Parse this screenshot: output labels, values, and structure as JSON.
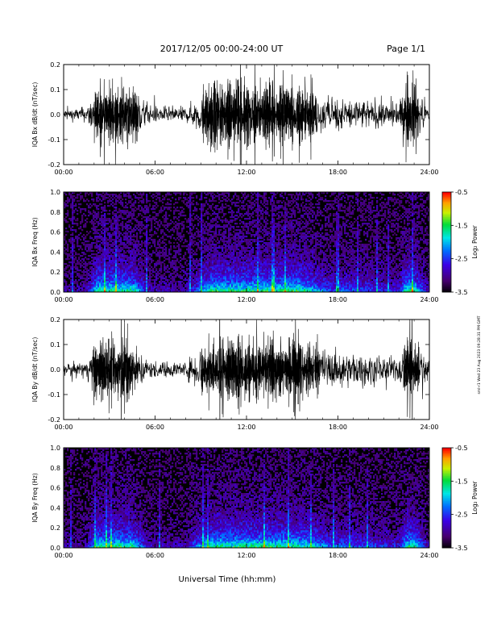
{
  "header": {
    "title": "2017/12/05  00:00-24:00 UT",
    "page": "Page 1/1"
  },
  "x_axis_title": "Universal Time (hh:mm)",
  "side_note": "sml-r1 Wed 23 Aug 2023 09:28:31 PM GMT",
  "chart_data": [
    {
      "type": "line",
      "panel": "Bx dB/dt",
      "ylabel": "IQA Bx dB/dt (nT/sec)",
      "xlim": [
        0,
        24
      ],
      "ylim": [
        -0.2,
        0.2
      ],
      "xticks": [
        "00:00",
        "06:00",
        "12:00",
        "18:00",
        "24:00"
      ],
      "yticks": [
        "-0.2",
        "-0.1",
        "0.0",
        "0.1",
        "0.2"
      ],
      "activity_envelope": {
        "x_hours": [
          0,
          1.5,
          2.2,
          4.5,
          5.6,
          8.0,
          8.6,
          9.7,
          11.5,
          13.0,
          14.5,
          15.6,
          17.6,
          18.5,
          20.0,
          22.0,
          22.5,
          23.0,
          24.0
        ],
        "amplitude": [
          0.04,
          0.05,
          0.2,
          0.2,
          0.06,
          0.05,
          0.1,
          0.2,
          0.2,
          0.2,
          0.2,
          0.2,
          0.1,
          0.12,
          0.1,
          0.08,
          0.2,
          0.2,
          0.04
        ]
      }
    },
    {
      "type": "heatmap",
      "panel": "Bx Freq",
      "ylabel": "IQA Bx Freq (Hz)",
      "xlim": [
        0,
        24
      ],
      "ylim": [
        0.0,
        1.0
      ],
      "xticks": [
        "00:00",
        "06:00",
        "12:00",
        "18:00",
        "24:00"
      ],
      "yticks": [
        "0.0",
        "0.2",
        "0.4",
        "0.6",
        "0.8",
        "1.0"
      ],
      "colorbar": {
        "label": "Log₂ Power",
        "range": [
          -3.5,
          -0.5
        ],
        "ticks": [
          "-0.5",
          "-1.5",
          "-2.5",
          "-3.5"
        ]
      }
    },
    {
      "type": "line",
      "panel": "By dB/dt",
      "ylabel": "IQA By dB/dt (nT/sec)",
      "xlim": [
        0,
        24
      ],
      "ylim": [
        -0.2,
        0.2
      ],
      "xticks": [
        "00:00",
        "06:00",
        "12:00",
        "18:00",
        "24:00"
      ],
      "yticks": [
        "-0.2",
        "-0.1",
        "0.0",
        "0.1",
        "0.2"
      ],
      "activity_envelope": {
        "x_hours": [
          0,
          1.5,
          2.2,
          4.5,
          5.6,
          8.0,
          8.6,
          9.7,
          11.5,
          13.0,
          14.5,
          15.6,
          17.6,
          18.5,
          20.0,
          22.0,
          22.5,
          23.0,
          24.0
        ],
        "amplitude": [
          0.04,
          0.05,
          0.2,
          0.2,
          0.06,
          0.05,
          0.12,
          0.2,
          0.2,
          0.2,
          0.2,
          0.2,
          0.12,
          0.12,
          0.1,
          0.08,
          0.2,
          0.2,
          0.04
        ]
      }
    },
    {
      "type": "heatmap",
      "panel": "By Freq",
      "ylabel": "IQA By Freq (Hz)",
      "xlim": [
        0,
        24
      ],
      "ylim": [
        0.0,
        1.0
      ],
      "xticks": [
        "00:00",
        "06:00",
        "12:00",
        "18:00",
        "24:00"
      ],
      "yticks": [
        "0.0",
        "0.2",
        "0.4",
        "0.6",
        "0.8",
        "1.0"
      ],
      "colorbar": {
        "label": "Log₂ Power",
        "range": [
          -3.5,
          -0.5
        ],
        "ticks": [
          "-0.5",
          "-1.5",
          "-2.5",
          "-3.5"
        ]
      }
    }
  ]
}
